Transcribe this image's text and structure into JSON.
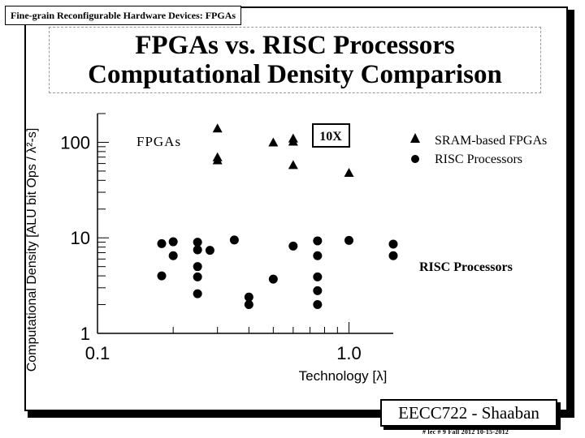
{
  "header": {
    "tag": "Fine-grain Reconfigurable Hardware Devices: FPGAs"
  },
  "title": {
    "line1": "FPGAs vs. RISC Processors",
    "line2": "Computational Density Comparison"
  },
  "chart_data": {
    "type": "scatter",
    "title": "",
    "xlabel": "Technology [λ]",
    "ylabel": "Computational Density [ALU bit Ops / λ²-s]",
    "xscale": "log",
    "yscale": "log",
    "xlim": [
      0.1,
      1.5
    ],
    "ylim": [
      1,
      200
    ],
    "x_ticks": [
      {
        "value": 0.1,
        "label": "0.1"
      },
      {
        "value": 1.0,
        "label": "1.0"
      }
    ],
    "y_ticks": [
      {
        "value": 1,
        "label": "1"
      },
      {
        "value": 10,
        "label": "10"
      },
      {
        "value": 100,
        "label": "100"
      }
    ],
    "legend_position": "top-right",
    "series": [
      {
        "name": "SRAM-based FPGAs",
        "marker": "triangle",
        "points": [
          {
            "x": 0.3,
            "y": 140
          },
          {
            "x": 0.3,
            "y": 70
          },
          {
            "x": 0.3,
            "y": 65
          },
          {
            "x": 0.5,
            "y": 100
          },
          {
            "x": 0.6,
            "y": 110
          },
          {
            "x": 0.6,
            "y": 102
          },
          {
            "x": 0.6,
            "y": 58
          },
          {
            "x": 1.0,
            "y": 48
          }
        ]
      },
      {
        "name": "RISC Processors",
        "marker": "circle",
        "points": [
          {
            "x": 0.18,
            "y": 8.7
          },
          {
            "x": 0.18,
            "y": 4.0
          },
          {
            "x": 0.2,
            "y": 9.1
          },
          {
            "x": 0.2,
            "y": 6.5
          },
          {
            "x": 0.25,
            "y": 9.0
          },
          {
            "x": 0.25,
            "y": 7.5
          },
          {
            "x": 0.25,
            "y": 5.0
          },
          {
            "x": 0.25,
            "y": 3.9
          },
          {
            "x": 0.25,
            "y": 2.6
          },
          {
            "x": 0.28,
            "y": 7.4
          },
          {
            "x": 0.35,
            "y": 9.5
          },
          {
            "x": 0.4,
            "y": 2.4
          },
          {
            "x": 0.4,
            "y": 2.0
          },
          {
            "x": 0.5,
            "y": 3.7
          },
          {
            "x": 0.6,
            "y": 8.2
          },
          {
            "x": 0.75,
            "y": 9.3
          },
          {
            "x": 0.75,
            "y": 6.5
          },
          {
            "x": 0.75,
            "y": 3.9
          },
          {
            "x": 0.75,
            "y": 2.8
          },
          {
            "x": 0.75,
            "y": 2.0
          },
          {
            "x": 1.0,
            "y": 9.4
          },
          {
            "x": 1.5,
            "y": 8.6
          },
          {
            "x": 1.5,
            "y": 6.5
          }
        ]
      }
    ],
    "annotations": {
      "fpga_group": "FPGAs",
      "ratio_box": "10X",
      "risc_group": "RISC Processors"
    }
  },
  "footer": {
    "course": "EECC722 - Shaaban",
    "lecture": "#  lec # 9    Fall 2012   10-15-2012"
  }
}
